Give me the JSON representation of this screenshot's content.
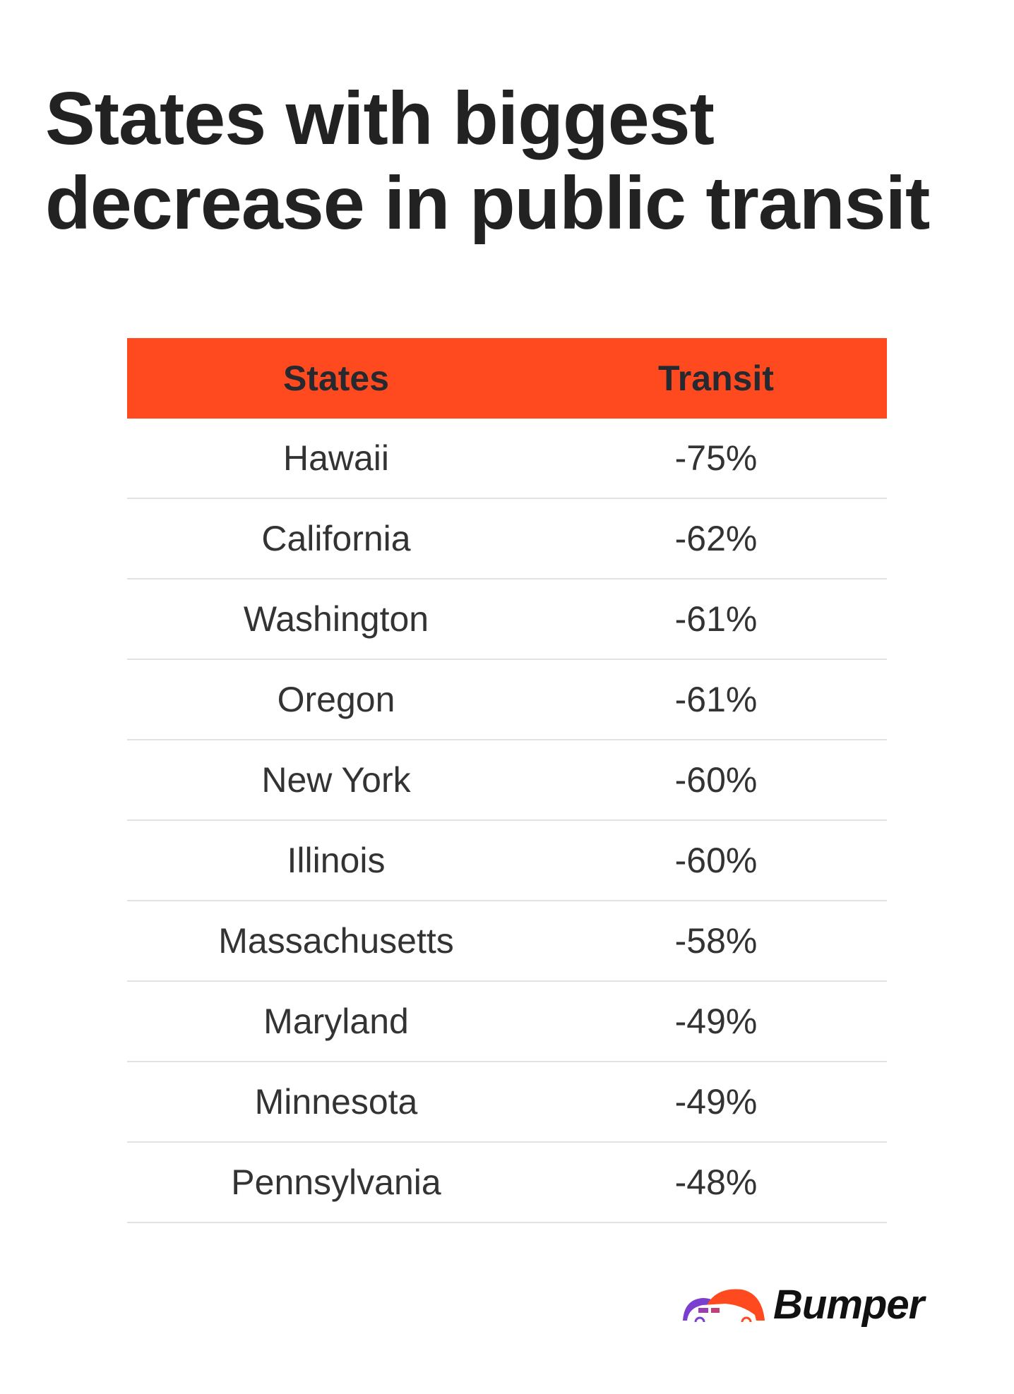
{
  "title": {
    "line1": "States with biggest",
    "line2": "decrease in public transit"
  },
  "table": {
    "headers": [
      "States",
      "Transit"
    ],
    "header_color": "#ff4a1f",
    "rows": [
      {
        "state": "Hawaii",
        "transit": "-75%"
      },
      {
        "state": "California",
        "transit": "-62%"
      },
      {
        "state": "Washington",
        "transit": "-61%"
      },
      {
        "state": "Oregon",
        "transit": "-61%"
      },
      {
        "state": "New York",
        "transit": "-60%"
      },
      {
        "state": "Illinois",
        "transit": "-60%"
      },
      {
        "state": "Massachusetts",
        "transit": "-58%"
      },
      {
        "state": "Maryland",
        "transit": "-49%"
      },
      {
        "state": "Minnesota",
        "transit": "-49%"
      },
      {
        "state": "Pennsylvania",
        "transit": "-48%"
      }
    ]
  },
  "logo": {
    "text": "Bumper",
    "colors": [
      "#7b3fd0",
      "#ff4a1f"
    ]
  }
}
